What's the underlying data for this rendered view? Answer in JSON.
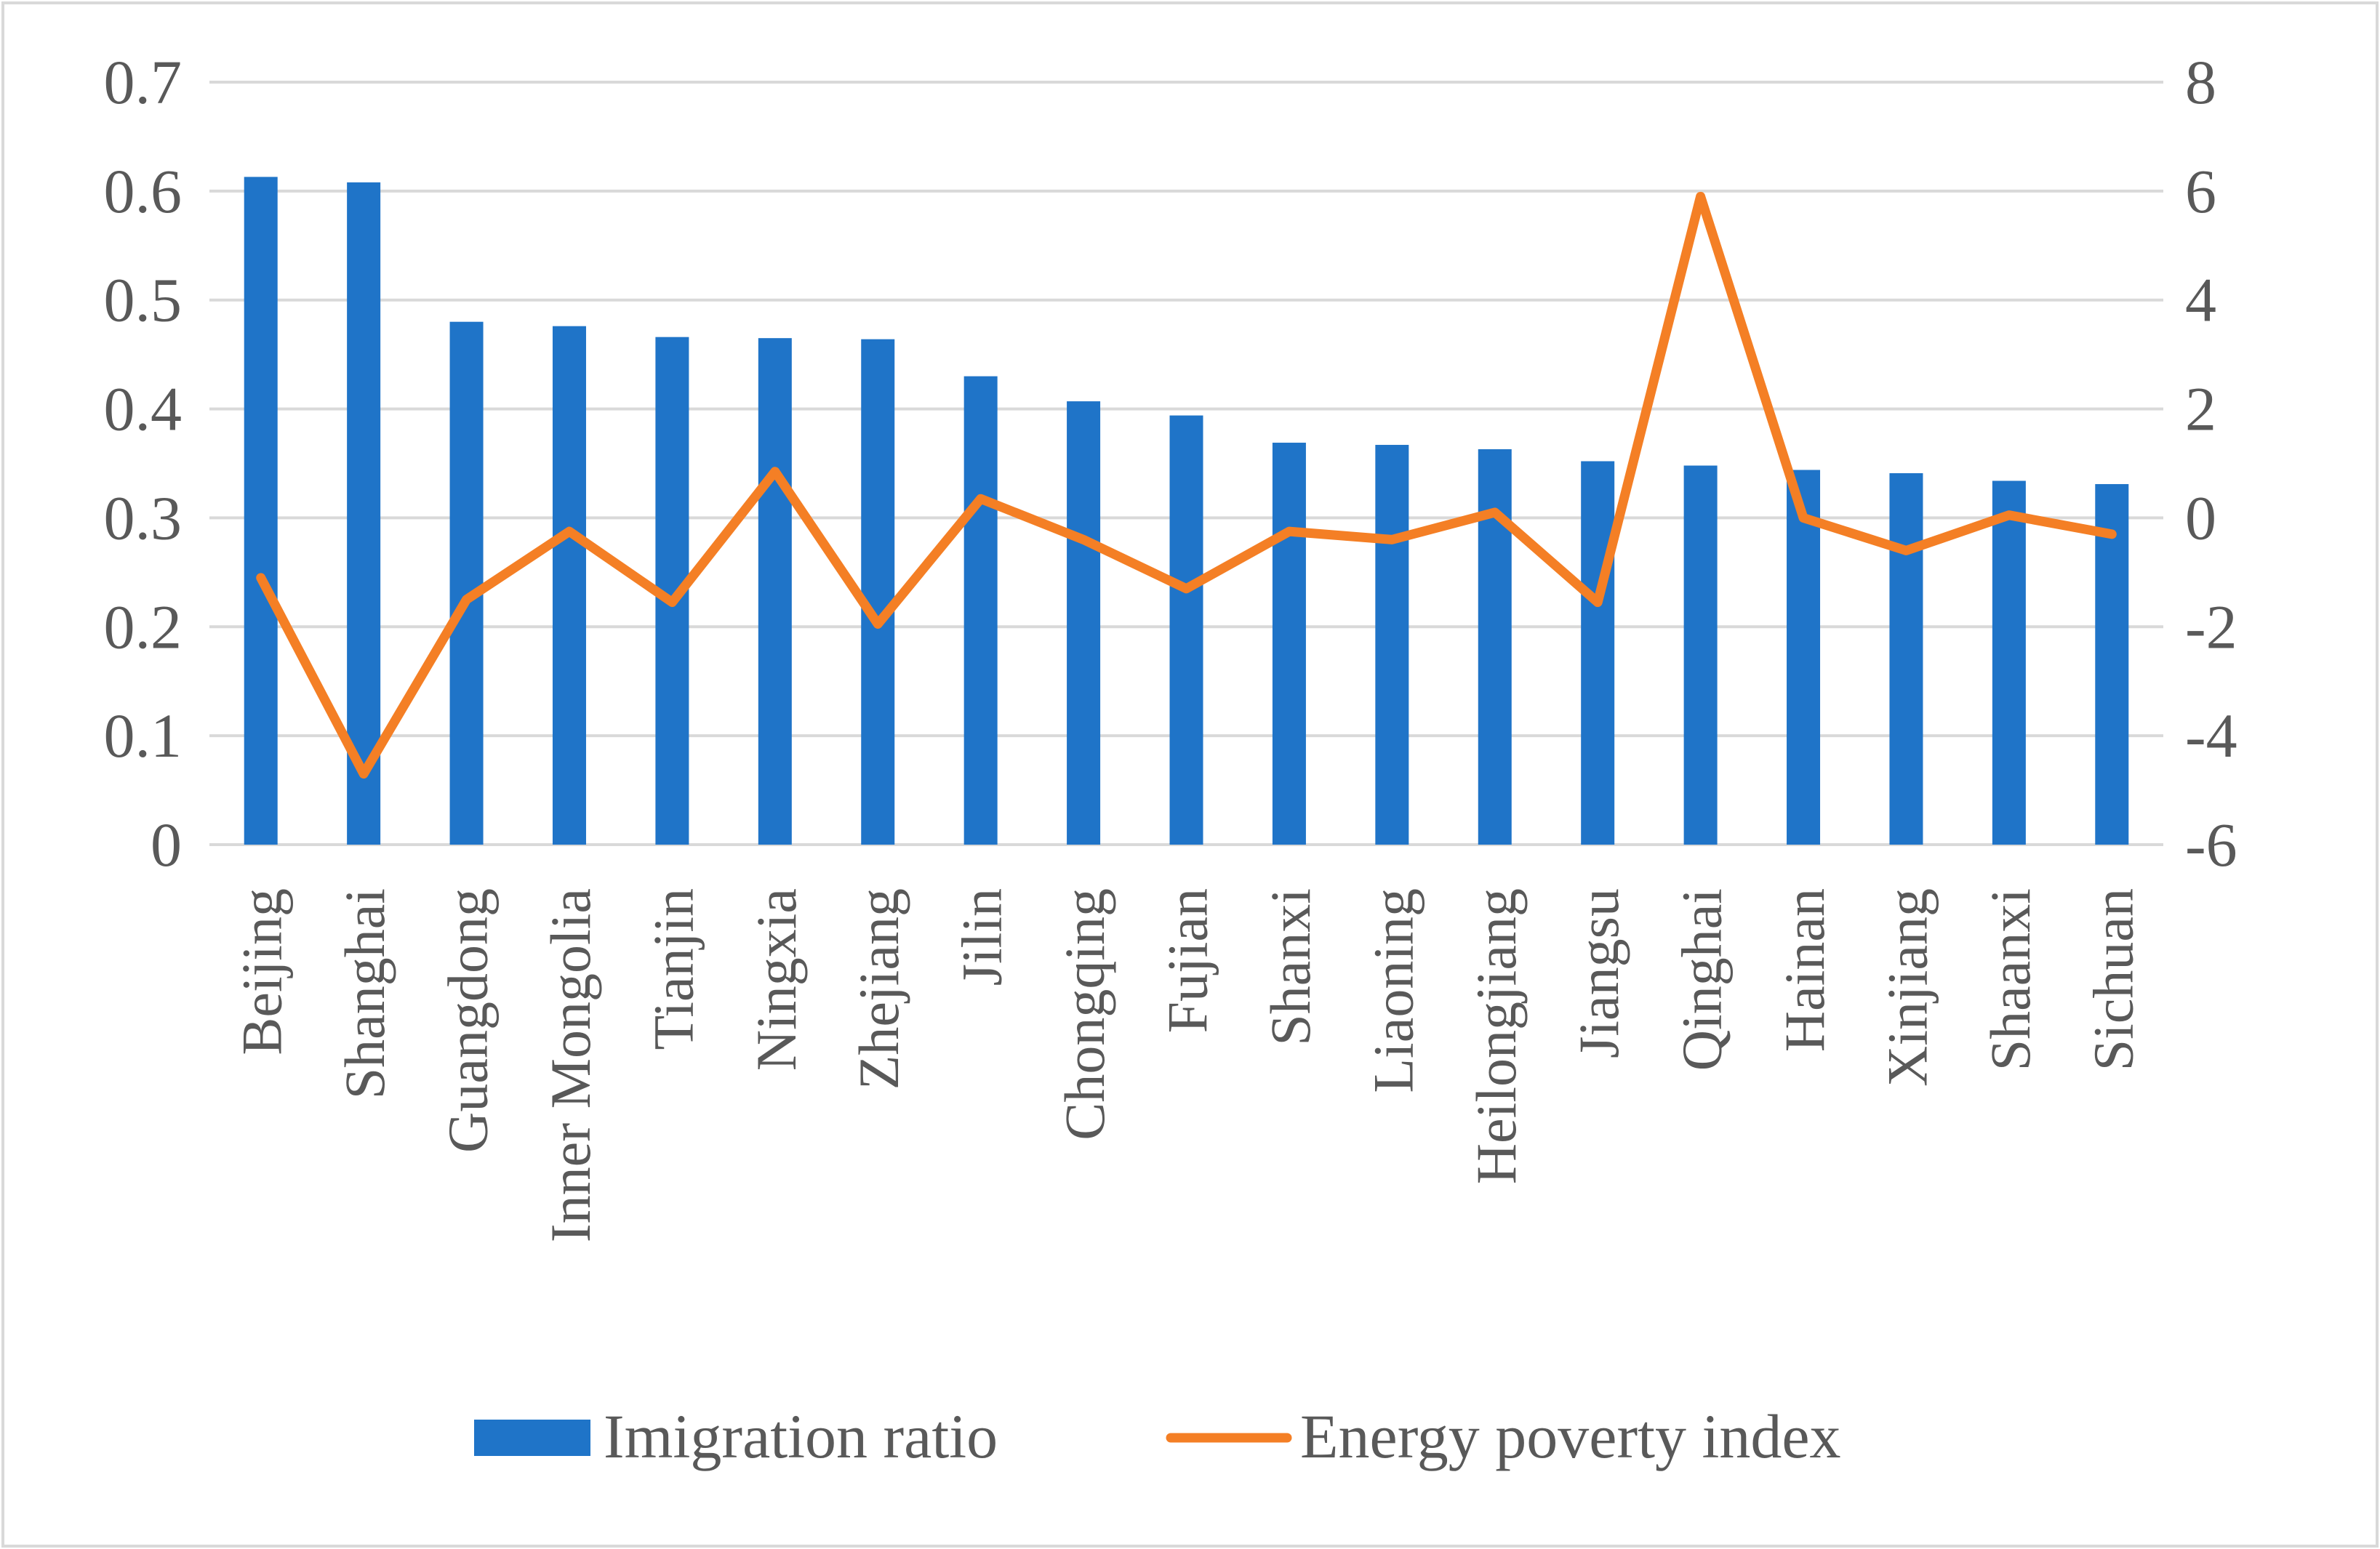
{
  "chart_data": {
    "type": "bar+line",
    "title": "",
    "categories": [
      "Beijing",
      "Shanghai",
      "Guangdong",
      "Inner Mongolia",
      "Tianjin",
      "Ningxia",
      "Zhejiang",
      "Jilin",
      "Chongqing",
      "Fujian",
      "Shanxi",
      "Liaoning",
      "Heilongjiang",
      "Jiangsu",
      "Qinghai",
      "Hainan",
      "Xinjiang",
      "Shaanxi",
      "Sichuan"
    ],
    "series": [
      {
        "name": "Imigration ratio",
        "type": "bar",
        "axis": "left",
        "color": "#1F74C8",
        "values": [
          0.613,
          0.608,
          0.48,
          0.476,
          0.466,
          0.465,
          0.464,
          0.43,
          0.407,
          0.394,
          0.369,
          0.367,
          0.363,
          0.352,
          0.348,
          0.344,
          0.341,
          0.334,
          0.331
        ]
      },
      {
        "name": "Energy poverty index",
        "type": "line",
        "axis": "right",
        "color": "#F47F25",
        "values": [
          -1.1,
          -4.7,
          -1.5,
          -0.25,
          -1.55,
          0.85,
          -1.95,
          0.35,
          -0.4,
          -1.3,
          -0.25,
          -0.4,
          0.1,
          -1.55,
          5.9,
          0.0,
          -0.6,
          0.05,
          -0.3
        ]
      }
    ],
    "y_left": {
      "min": 0,
      "max": 0.7,
      "ticks": [
        "0",
        "0.1",
        "0.2",
        "0.3",
        "0.4",
        "0.5",
        "0.6",
        "0.7"
      ]
    },
    "y_right": {
      "min": -6,
      "max": 8,
      "ticks": [
        "-6",
        "-4",
        "-2",
        "0",
        "2",
        "4",
        "6",
        "8"
      ]
    },
    "grid": true,
    "legend": "bottom-center"
  }
}
